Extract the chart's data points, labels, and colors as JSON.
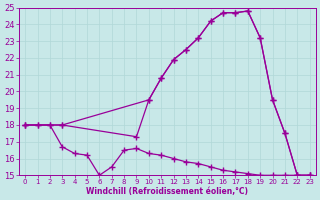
{
  "bg_color": "#c8e8e8",
  "grid_color": "#b0d8d8",
  "line_color": "#990099",
  "xlim": [
    -0.5,
    23.5
  ],
  "ylim": [
    15,
    25
  ],
  "xticks": [
    0,
    1,
    2,
    3,
    4,
    5,
    6,
    7,
    8,
    9,
    10,
    11,
    12,
    13,
    14,
    15,
    16,
    17,
    18,
    19,
    20,
    21,
    22,
    23
  ],
  "yticks": [
    15,
    16,
    17,
    18,
    19,
    20,
    21,
    22,
    23,
    24,
    25
  ],
  "xlabel": "Windchill (Refroidissement éolien,°C)",
  "line1_x": [
    0,
    1,
    2,
    3,
    9,
    10,
    11,
    12,
    13,
    14,
    15,
    16,
    17,
    18,
    19,
    20,
    21,
    22,
    23
  ],
  "line1_y": [
    18,
    18,
    18,
    18,
    17.3,
    19.5,
    20.8,
    21.9,
    22.5,
    23.2,
    24.2,
    24.7,
    24.7,
    24.8,
    23.2,
    19.5,
    17.5,
    15.0,
    15.0
  ],
  "line2_x": [
    0,
    3,
    10,
    11,
    12,
    13,
    14,
    15,
    16,
    17,
    18,
    19,
    20,
    21,
    22,
    23
  ],
  "line2_y": [
    18,
    18,
    19.5,
    20.8,
    21.9,
    22.5,
    23.2,
    24.2,
    24.7,
    24.7,
    24.8,
    23.2,
    19.5,
    17.5,
    15.0,
    15.0
  ],
  "line3_x": [
    0,
    1,
    2,
    3,
    4,
    5,
    6,
    7,
    8,
    9,
    10,
    11,
    12,
    13,
    14,
    15,
    16,
    17,
    18,
    19,
    20,
    21,
    22,
    23
  ],
  "line3_y": [
    18.0,
    18.0,
    18.0,
    16.7,
    16.3,
    16.2,
    15.0,
    15.5,
    16.5,
    16.6,
    16.3,
    16.2,
    16.0,
    15.8,
    15.7,
    15.5,
    15.3,
    15.2,
    15.1,
    15.0,
    15.0,
    15.0,
    15.0,
    15.0
  ]
}
